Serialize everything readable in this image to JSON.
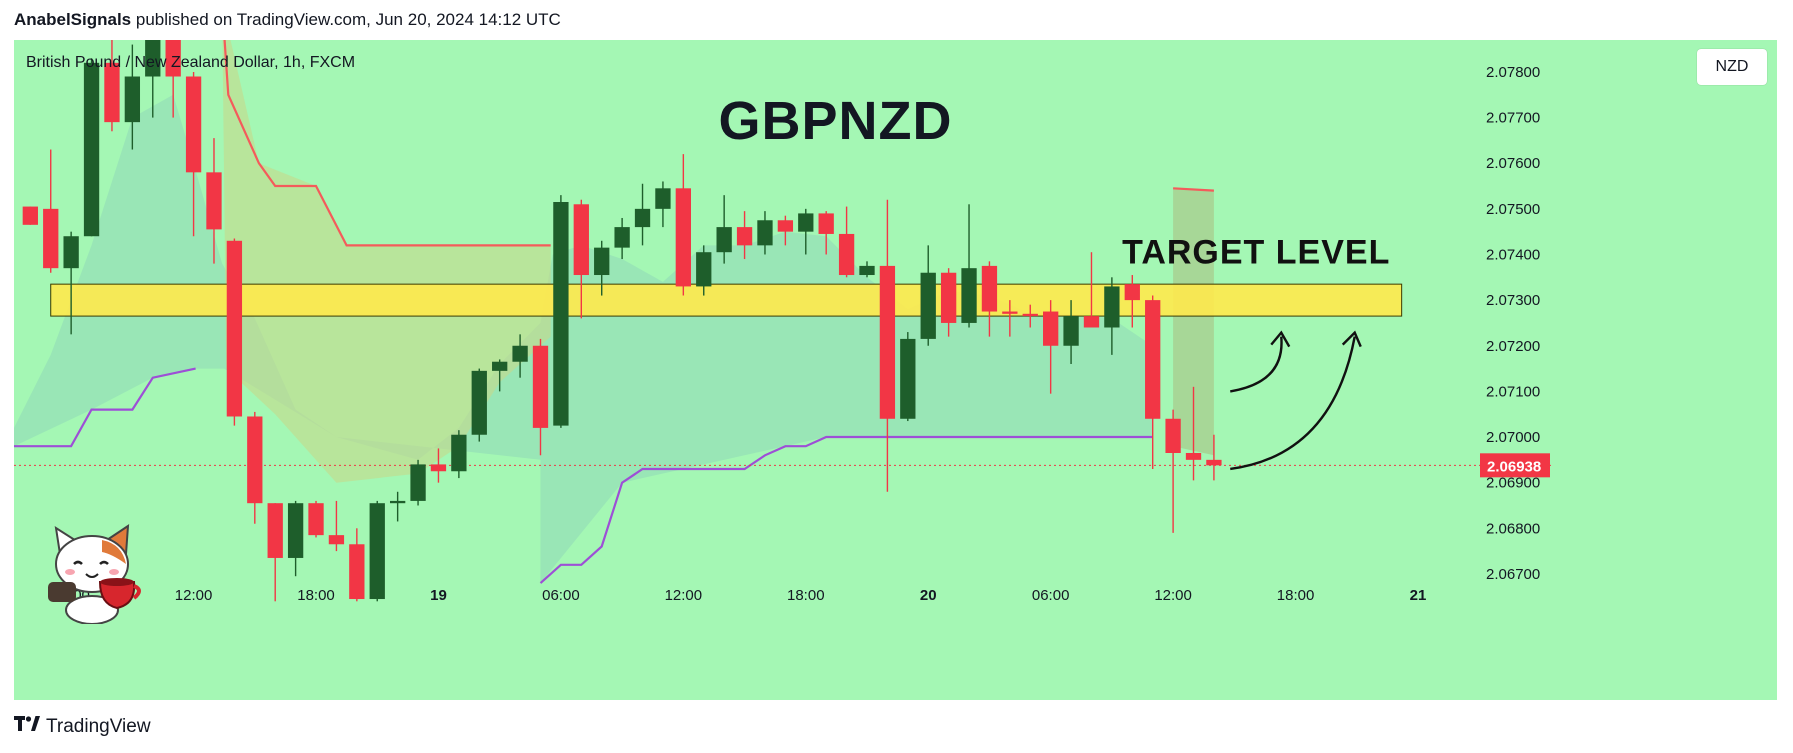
{
  "header": {
    "author": "AnabelSignals",
    "published_text": "published on TradingView.com, Jun 20, 2024 14:12 UTC"
  },
  "footer": {
    "brand": "TradingView",
    "logo_icon": "tradingview-logo-icon"
  },
  "chart_data": {
    "type": "candlestick",
    "title": "GBPNZD",
    "symbol_info": "British Pound / New Zealand Dollar, 1h, FXCM",
    "currency": "NZD",
    "current_price": "2.06938",
    "annotation": "TARGET LEVEL",
    "y_ticks": [
      "2.07800",
      "2.07700",
      "2.07600",
      "2.07500",
      "2.07400",
      "2.07300",
      "2.07200",
      "2.07100",
      "2.07000",
      "2.06900",
      "2.06800",
      "2.06700"
    ],
    "x_ticks": [
      {
        "label": "06:00",
        "t": 3,
        "bold": false
      },
      {
        "label": "12:00",
        "t": 9,
        "bold": false
      },
      {
        "label": "18:00",
        "t": 15,
        "bold": false
      },
      {
        "label": "19",
        "t": 21,
        "bold": true
      },
      {
        "label": "06:00",
        "t": 27,
        "bold": false
      },
      {
        "label": "12:00",
        "t": 33,
        "bold": false
      },
      {
        "label": "18:00",
        "t": 39,
        "bold": false
      },
      {
        "label": "20",
        "t": 45,
        "bold": true
      },
      {
        "label": "06:00",
        "t": 51,
        "bold": false
      },
      {
        "label": "12:00",
        "t": 57,
        "bold": false
      },
      {
        "label": "18:00",
        "t": 63,
        "bold": false
      },
      {
        "label": "21",
        "t": 69,
        "bold": true
      }
    ],
    "ylim": [
      2.0661,
      2.0787
    ],
    "xlim": [
      0.2,
      71.5
    ],
    "target_zone": [
      2.07265,
      2.07335
    ],
    "candles": [
      {
        "t": 1,
        "o": 2.07505,
        "h": 2.07505,
        "l": 2.07465,
        "c": 2.07465
      },
      {
        "t": 2,
        "o": 2.075,
        "h": 2.0763,
        "l": 2.0736,
        "c": 2.0737
      },
      {
        "t": 3,
        "o": 2.0737,
        "h": 2.0745,
        "l": 2.07225,
        "c": 2.0744
      },
      {
        "t": 4,
        "o": 2.0744,
        "h": 2.0783,
        "l": 2.0744,
        "c": 2.0782
      },
      {
        "t": 5,
        "o": 2.0782,
        "h": 2.0792,
        "l": 2.0767,
        "c": 2.0769
      },
      {
        "t": 6,
        "o": 2.0769,
        "h": 2.0786,
        "l": 2.0763,
        "c": 2.0779
      },
      {
        "t": 7,
        "o": 2.0779,
        "h": 2.079,
        "l": 2.077,
        "c": 2.0787
      },
      {
        "t": 8,
        "o": 2.0789,
        "h": 2.0793,
        "l": 2.077,
        "c": 2.0779
      },
      {
        "t": 9,
        "o": 2.0779,
        "h": 2.078,
        "l": 2.0744,
        "c": 2.0758
      },
      {
        "t": 10,
        "o": 2.0758,
        "h": 2.07655,
        "l": 2.0738,
        "c": 2.07455
      },
      {
        "t": 11,
        "o": 2.0743,
        "h": 2.07435,
        "l": 2.07025,
        "c": 2.07045
      },
      {
        "t": 12,
        "o": 2.07045,
        "h": 2.07055,
        "l": 2.0681,
        "c": 2.06855
      },
      {
        "t": 13,
        "o": 2.06855,
        "h": 2.06855,
        "l": 2.0664,
        "c": 2.06735
      },
      {
        "t": 14,
        "o": 2.06735,
        "h": 2.0686,
        "l": 2.06695,
        "c": 2.06855
      },
      {
        "t": 15,
        "o": 2.06855,
        "h": 2.0686,
        "l": 2.0678,
        "c": 2.06785
      },
      {
        "t": 16,
        "o": 2.06785,
        "h": 2.0686,
        "l": 2.0675,
        "c": 2.06765
      },
      {
        "t": 17,
        "o": 2.06765,
        "h": 2.068,
        "l": 2.0664,
        "c": 2.06645
      },
      {
        "t": 18,
        "o": 2.06645,
        "h": 2.0686,
        "l": 2.0664,
        "c": 2.06855
      },
      {
        "t": 19,
        "o": 2.06855,
        "h": 2.0688,
        "l": 2.06815,
        "c": 2.0686
      },
      {
        "t": 20,
        "o": 2.0686,
        "h": 2.0695,
        "l": 2.0685,
        "c": 2.0694
      },
      {
        "t": 21,
        "o": 2.0694,
        "h": 2.06975,
        "l": 2.069,
        "c": 2.06925
      },
      {
        "t": 22,
        "o": 2.06925,
        "h": 2.07015,
        "l": 2.0691,
        "c": 2.07005
      },
      {
        "t": 23,
        "o": 2.07005,
        "h": 2.0715,
        "l": 2.0699,
        "c": 2.07145
      },
      {
        "t": 24,
        "o": 2.07145,
        "h": 2.0717,
        "l": 2.071,
        "c": 2.07165
      },
      {
        "t": 25,
        "o": 2.07165,
        "h": 2.07225,
        "l": 2.0713,
        "c": 2.072
      },
      {
        "t": 26,
        "o": 2.072,
        "h": 2.07215,
        "l": 2.0696,
        "c": 2.0702
      },
      {
        "t": 27,
        "o": 2.07025,
        "h": 2.0753,
        "l": 2.0702,
        "c": 2.07515
      },
      {
        "t": 28,
        "o": 2.0751,
        "h": 2.0752,
        "l": 2.0726,
        "c": 2.07355
      },
      {
        "t": 29,
        "o": 2.07355,
        "h": 2.0743,
        "l": 2.0731,
        "c": 2.07415
      },
      {
        "t": 30,
        "o": 2.07415,
        "h": 2.0748,
        "l": 2.0739,
        "c": 2.0746
      },
      {
        "t": 31,
        "o": 2.0746,
        "h": 2.07555,
        "l": 2.0742,
        "c": 2.075
      },
      {
        "t": 32,
        "o": 2.075,
        "h": 2.0756,
        "l": 2.0746,
        "c": 2.07545
      },
      {
        "t": 33,
        "o": 2.07545,
        "h": 2.0762,
        "l": 2.0731,
        "c": 2.0733
      },
      {
        "t": 34,
        "o": 2.0733,
        "h": 2.0742,
        "l": 2.0731,
        "c": 2.07405
      },
      {
        "t": 35,
        "o": 2.07405,
        "h": 2.0753,
        "l": 2.0738,
        "c": 2.0746
      },
      {
        "t": 36,
        "o": 2.0746,
        "h": 2.07495,
        "l": 2.0739,
        "c": 2.0742
      },
      {
        "t": 37,
        "o": 2.0742,
        "h": 2.07495,
        "l": 2.074,
        "c": 2.07475
      },
      {
        "t": 38,
        "o": 2.07475,
        "h": 2.07485,
        "l": 2.0742,
        "c": 2.0745
      },
      {
        "t": 39,
        "o": 2.0745,
        "h": 2.075,
        "l": 2.074,
        "c": 2.0749
      },
      {
        "t": 40,
        "o": 2.0749,
        "h": 2.07495,
        "l": 2.074,
        "c": 2.07445
      },
      {
        "t": 41,
        "o": 2.07445,
        "h": 2.07505,
        "l": 2.0735,
        "c": 2.07355
      },
      {
        "t": 42,
        "o": 2.07355,
        "h": 2.07385,
        "l": 2.0735,
        "c": 2.07375
      },
      {
        "t": 43,
        "o": 2.07375,
        "h": 2.0752,
        "l": 2.0688,
        "c": 2.0704
      },
      {
        "t": 44,
        "o": 2.0704,
        "h": 2.0723,
        "l": 2.07035,
        "c": 2.07215
      },
      {
        "t": 45,
        "o": 2.07215,
        "h": 2.0742,
        "l": 2.072,
        "c": 2.0736
      },
      {
        "t": 46,
        "o": 2.0736,
        "h": 2.0737,
        "l": 2.0722,
        "c": 2.0725
      },
      {
        "t": 47,
        "o": 2.0725,
        "h": 2.0751,
        "l": 2.0724,
        "c": 2.0737
      },
      {
        "t": 48,
        "o": 2.07375,
        "h": 2.07385,
        "l": 2.0722,
        "c": 2.07275
      },
      {
        "t": 49,
        "o": 2.07275,
        "h": 2.073,
        "l": 2.0722,
        "c": 2.0727
      },
      {
        "t": 50,
        "o": 2.0727,
        "h": 2.0729,
        "l": 2.0724,
        "c": 2.07265
      },
      {
        "t": 51,
        "o": 2.07275,
        "h": 2.073,
        "l": 2.07095,
        "c": 2.072
      },
      {
        "t": 52,
        "o": 2.072,
        "h": 2.073,
        "l": 2.0716,
        "c": 2.07265
      },
      {
        "t": 53,
        "o": 2.07265,
        "h": 2.07405,
        "l": 2.0724,
        "c": 2.0724
      },
      {
        "t": 54,
        "o": 2.0724,
        "h": 2.0735,
        "l": 2.0718,
        "c": 2.0733
      },
      {
        "t": 55,
        "o": 2.07335,
        "h": 2.07355,
        "l": 2.0724,
        "c": 2.073
      },
      {
        "t": 56,
        "o": 2.073,
        "h": 2.0731,
        "l": 2.0693,
        "c": 2.0704
      },
      {
        "t": 57,
        "o": 2.0704,
        "h": 2.0706,
        "l": 2.0679,
        "c": 2.06965
      },
      {
        "t": 58,
        "o": 2.06965,
        "h": 2.0711,
        "l": 2.06905,
        "c": 2.0695
      },
      {
        "t": 59,
        "o": 2.0695,
        "h": 2.07005,
        "l": 2.06905,
        "c": 2.06938
      }
    ],
    "ichimoku_upper": [
      [
        10.4,
        2.0795
      ],
      [
        10.7,
        2.0775
      ],
      [
        12.2,
        2.076
      ],
      [
        13,
        2.0755
      ],
      [
        15,
        2.0755
      ],
      [
        16.5,
        2.0742
      ],
      [
        26.5,
        2.0742
      ]
    ],
    "ichimoku_lower": [
      [
        0.2,
        2.0698
      ],
      [
        3,
        2.0698
      ],
      [
        4,
        2.0706
      ],
      [
        6,
        2.0706
      ],
      [
        7,
        2.0713
      ],
      [
        9.1,
        2.0715
      ]
    ],
    "ichimoku_lower2": [
      [
        26,
        2.0668
      ],
      [
        27,
        2.0672
      ],
      [
        28,
        2.0672
      ],
      [
        29,
        2.0676
      ],
      [
        30,
        2.069
      ],
      [
        31,
        2.0693
      ],
      [
        36,
        2.0693
      ],
      [
        37,
        2.0696
      ],
      [
        38,
        2.0698
      ],
      [
        39,
        2.0698
      ],
      [
        40,
        2.07
      ],
      [
        56,
        2.07
      ]
    ],
    "future_cloud_top": [
      [
        57,
        2.07545
      ],
      [
        59,
        2.0754
      ]
    ],
    "green_cloud": [
      [
        0.2,
        2.0702
      ],
      [
        2,
        2.0718
      ],
      [
        4,
        2.0742
      ],
      [
        6,
        2.077
      ],
      [
        8,
        2.0775
      ],
      [
        9,
        2.076
      ],
      [
        10.4,
        2.0738
      ],
      [
        12,
        2.0726
      ],
      [
        14,
        2.0706
      ],
      [
        16,
        2.07
      ],
      [
        20,
        2.0695
      ],
      [
        22,
        2.0702
      ],
      [
        24,
        2.0716
      ],
      [
        26,
        2.0725
      ],
      [
        26.6,
        2.074
      ],
      [
        28,
        2.0742
      ],
      [
        30,
        2.0739
      ],
      [
        32,
        2.0734
      ],
      [
        34,
        2.0742
      ],
      [
        36,
        2.0742
      ],
      [
        38,
        2.0745
      ],
      [
        40,
        2.0744
      ],
      [
        42,
        2.0735
      ],
      [
        44,
        2.0728
      ],
      [
        46,
        2.0732
      ],
      [
        48,
        2.0731
      ],
      [
        50,
        2.0727
      ],
      [
        52,
        2.0727
      ],
      [
        54,
        2.0726
      ],
      [
        56,
        2.072
      ]
    ],
    "colors": {
      "background": "#a4f7b4",
      "bull": "#1e5e2b",
      "bear": "#f23645",
      "target_zone": "#ffe94d",
      "upper_line": "#f45b5b",
      "lower_line": "#9d4fd6",
      "price_line": "#f23645"
    }
  }
}
